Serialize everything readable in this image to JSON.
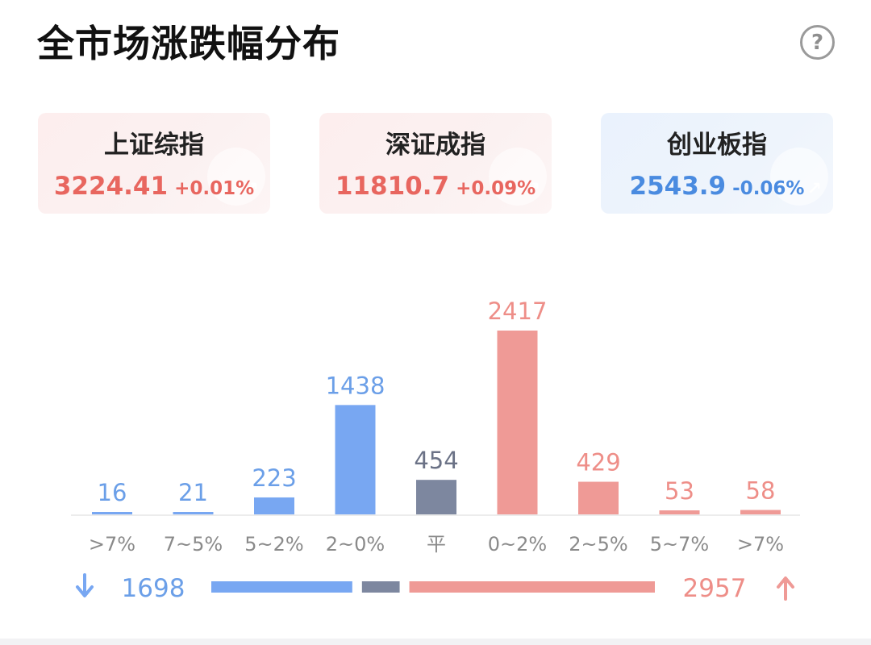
{
  "header": {
    "title": "全市场涨跌幅分布",
    "help_icon": "question-circle-icon",
    "help_label": "?"
  },
  "indices": [
    {
      "name": "上证综指",
      "price": "3224.41",
      "change": "+0.01%",
      "trend": "up"
    },
    {
      "name": "深证成指",
      "price": "11810.7",
      "change": "+0.09%",
      "trend": "up"
    },
    {
      "name": "创业板指",
      "price": "2543.9",
      "change": "-0.06%",
      "trend": "down"
    }
  ],
  "colors": {
    "fall": "#78a7f2",
    "flat": "#7d879f",
    "rise": "#ef9a96",
    "fall_text": "#6b9fe8",
    "flat_text": "#6b7286",
    "rise_text": "#ee8e88",
    "label": "#8a8a8a",
    "axis": "#ececec"
  },
  "chart_data": {
    "type": "bar",
    "categories": [
      ">7%",
      "7~5%",
      "5~2%",
      "2~0%",
      "平",
      "0~2%",
      "2~5%",
      "5~7%",
      ">7%"
    ],
    "values": [
      16,
      21,
      223,
      1438,
      454,
      2417,
      429,
      53,
      58
    ],
    "groups": [
      "fall",
      "fall",
      "fall",
      "fall",
      "flat",
      "rise",
      "rise",
      "rise",
      "rise"
    ],
    "ylim": [
      0,
      2417
    ],
    "grid": false,
    "summary": {
      "fall_total": 1698,
      "flat_total": 454,
      "rise_total": 2957,
      "fall_icon": "arrow-down-icon",
      "rise_icon": "arrow-up-icon"
    }
  }
}
